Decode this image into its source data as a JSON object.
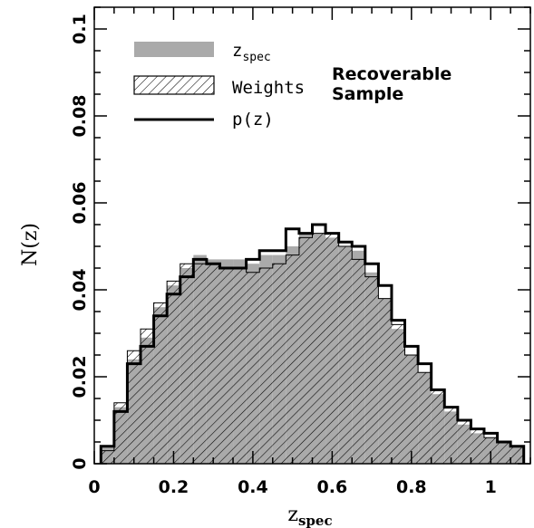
{
  "chart_data": {
    "type": "histogram",
    "xlabel": "z",
    "xlabel_sub": "spec",
    "ylabel": "N(z)",
    "xlim": [
      0,
      1.1
    ],
    "ylim": [
      0,
      0.105
    ],
    "x_ticks": [
      0,
      0.2,
      0.4,
      0.6,
      0.8,
      1
    ],
    "x_tick_labels": [
      "0",
      "0.2",
      "0.4",
      "0.6",
      "0.8",
      "1"
    ],
    "y_ticks": [
      0,
      0.02,
      0.04,
      0.06,
      0.08,
      0.1
    ],
    "y_tick_labels": [
      "0",
      "0.02",
      "0.04",
      "0.06",
      "0.08",
      "0.1"
    ],
    "bin_edges": [
      0.0167,
      0.05,
      0.0833,
      0.1167,
      0.15,
      0.1833,
      0.2167,
      0.25,
      0.2833,
      0.3167,
      0.35,
      0.3833,
      0.4167,
      0.45,
      0.4833,
      0.5167,
      0.55,
      0.5833,
      0.6167,
      0.65,
      0.6833,
      0.7167,
      0.75,
      0.7833,
      0.8167,
      0.85,
      0.8833,
      0.9167,
      0.95,
      0.9833,
      1.0167,
      1.05,
      1.0833
    ],
    "series": [
      {
        "name": "z",
        "name_sub": "spec",
        "style": "filled",
        "color": "#aaaaaa",
        "values": [
          0.004,
          0.013,
          0.024,
          0.029,
          0.036,
          0.041,
          0.045,
          0.048,
          0.047,
          0.047,
          0.047,
          0.046,
          0.048,
          0.048,
          0.05,
          0.053,
          0.053,
          0.052,
          0.05,
          0.049,
          0.044,
          0.038,
          0.031,
          0.025,
          0.021,
          0.016,
          0.012,
          0.009,
          0.007,
          0.006,
          0.005,
          0.004
        ]
      },
      {
        "name": "Weights",
        "style": "hatched",
        "color": "#000000",
        "values": [
          0.003,
          0.014,
          0.026,
          0.031,
          0.037,
          0.042,
          0.046,
          0.046,
          0.046,
          0.045,
          0.045,
          0.044,
          0.045,
          0.046,
          0.048,
          0.052,
          0.053,
          0.053,
          0.05,
          0.047,
          0.043,
          0.038,
          0.032,
          0.025,
          0.021,
          0.017,
          0.013,
          0.01,
          0.008,
          0.006,
          0.005,
          0.004
        ]
      },
      {
        "name": "p(z)",
        "style": "line",
        "color": "#000000",
        "values": [
          0.004,
          0.012,
          0.023,
          0.027,
          0.034,
          0.039,
          0.043,
          0.047,
          0.046,
          0.045,
          0.045,
          0.047,
          0.049,
          0.049,
          0.054,
          0.053,
          0.055,
          0.053,
          0.051,
          0.05,
          0.046,
          0.041,
          0.033,
          0.027,
          0.023,
          0.017,
          0.013,
          0.01,
          0.008,
          0.007,
          0.005,
          0.004
        ]
      }
    ],
    "annotation": [
      "Recoverable",
      "Sample"
    ],
    "legend_position": "top-left"
  }
}
